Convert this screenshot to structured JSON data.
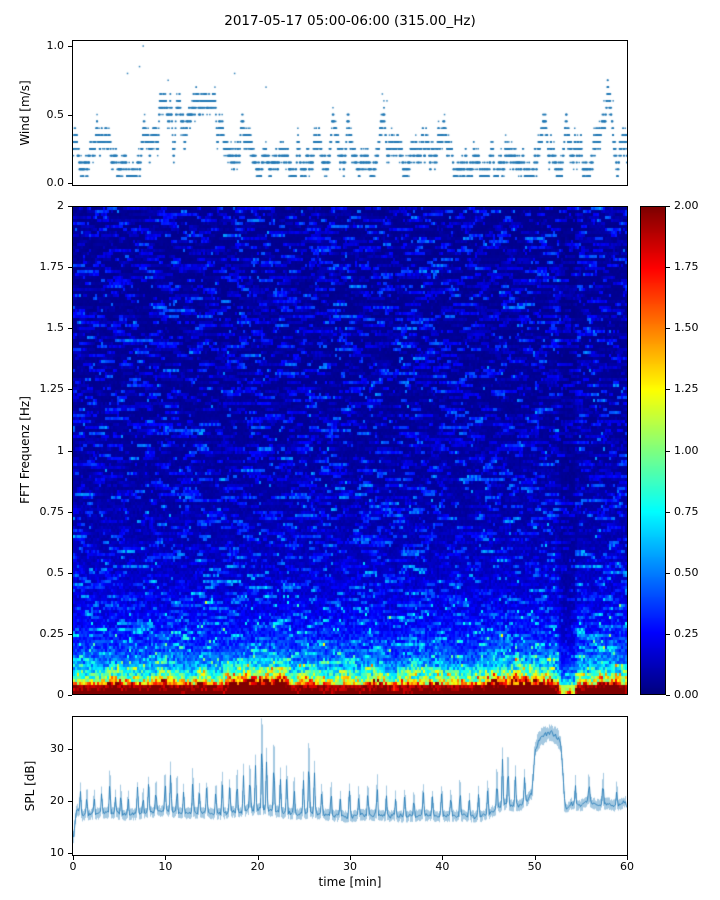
{
  "title": "2017-05-17 05:00-06:00 (315.00_Hz)",
  "colors": {
    "dot_blue": "#1f77b4",
    "line_blue": "#1f77b4",
    "axis": "#000000",
    "background": "#ffffff"
  },
  "axes": {
    "x": {
      "label": "time [min]",
      "min": 0,
      "max": 60,
      "ticks": [
        {
          "v": 0,
          "label": "0"
        },
        {
          "v": 10,
          "label": "10"
        },
        {
          "v": 20,
          "label": "20"
        },
        {
          "v": 30,
          "label": "30"
        },
        {
          "v": 40,
          "label": "40"
        },
        {
          "v": 50,
          "label": "50"
        },
        {
          "v": 60,
          "label": "60"
        }
      ]
    },
    "wind": {
      "ylabel": "Wind [m/s]",
      "min": 0.0,
      "max": 1.0,
      "ticks": [
        {
          "v": 1.0,
          "label": "1.0"
        },
        {
          "v": 0.5,
          "label": "0.5"
        },
        {
          "v": 0.0,
          "label": "0.0"
        }
      ]
    },
    "spectrogram": {
      "ylabel": "FFT Frequenz [Hz]",
      "min": 0,
      "max": 2,
      "ticks": [
        {
          "v": 2,
          "label": "2"
        },
        {
          "v": 1.75,
          "label": "1.75"
        },
        {
          "v": 1.5,
          "label": "1.5"
        },
        {
          "v": 1.25,
          "label": "1.25"
        },
        {
          "v": 1,
          "label": "1"
        },
        {
          "v": 0.75,
          "label": "0.75"
        },
        {
          "v": 0.5,
          "label": "0.5"
        },
        {
          "v": 0.25,
          "label": "0.25"
        },
        {
          "v": 0,
          "label": "0"
        }
      ]
    },
    "colorbar": {
      "min": 0,
      "max": 2,
      "colormap": "jet",
      "ticks": [
        {
          "v": 2.0,
          "label": "2.00"
        },
        {
          "v": 1.75,
          "label": "1.75"
        },
        {
          "v": 1.5,
          "label": "1.50"
        },
        {
          "v": 1.25,
          "label": "1.25"
        },
        {
          "v": 1.0,
          "label": "1.00"
        },
        {
          "v": 0.75,
          "label": "0.75"
        },
        {
          "v": 0.5,
          "label": "0.50"
        },
        {
          "v": 0.25,
          "label": "0.25"
        },
        {
          "v": 0.0,
          "label": "0.00"
        }
      ]
    },
    "spl": {
      "ylabel": "SPL [dB]",
      "ticks": [
        {
          "v": 30,
          "label": "30"
        },
        {
          "v": 20,
          "label": "20"
        },
        {
          "v": 10,
          "label": "10"
        }
      ]
    }
  },
  "chart_data": [
    {
      "type": "scatter",
      "name": "wind",
      "title": "",
      "xlabel": "time [min]",
      "ylabel": "Wind [m/s]",
      "xlim": [
        0,
        60
      ],
      "ylim": [
        0,
        1.0
      ],
      "marker_color": "#1f77b4",
      "quantization": 0.05,
      "dominant_levels": [
        0.1,
        0.15,
        0.2,
        0.25,
        0.3
      ],
      "sparse_levels": [
        0.4,
        0.5,
        0.6
      ],
      "gust_windows": [
        [
          7,
          9.5
        ],
        [
          9.8,
          12
        ],
        [
          13,
          15.5
        ],
        [
          17,
          19
        ],
        [
          32.5,
          34.5
        ],
        [
          56,
          59.5
        ]
      ],
      "rare_points": [
        [
          7.6,
          1.0
        ],
        [
          5.9,
          0.8
        ],
        [
          17.5,
          0.8
        ],
        [
          7.2,
          0.85
        ],
        [
          33.5,
          0.65
        ],
        [
          34,
          0.6
        ],
        [
          57.5,
          0.6
        ],
        [
          58.5,
          0.6
        ],
        [
          10.3,
          0.75
        ],
        [
          20.9,
          0.7
        ]
      ],
      "samples_per_minute": 60,
      "seed": 42
    },
    {
      "type": "heatmap",
      "name": "spectrogram",
      "xlabel": "time [min]",
      "ylabel": "FFT Frequenz [Hz]",
      "xlim": [
        0,
        60
      ],
      "ylim": [
        0,
        2
      ],
      "vmin": 0,
      "vmax": 2,
      "colormap": "jet",
      "background_level": [
        0.03,
        0.41
      ],
      "lowfreq_peak": 1.9,
      "lowfreq_decay": 0.045,
      "midfreq_gain": 0.5,
      "midfreq_decay": 0.3,
      "bottom_band_value": 1.8,
      "events": [
        {
          "t0": 16.5,
          "t1": 23.5,
          "gain": 1.3,
          "fdecay": 0.05
        },
        {
          "t0": 44.5,
          "t1": 52.4,
          "gain": 1.0,
          "fdecay": 0.045
        },
        {
          "t0": 3.5,
          "t1": 6.0,
          "gain": 0.45,
          "fdecay": 0.04
        },
        {
          "t0": 8.5,
          "t1": 11.5,
          "gain": 0.5,
          "fdecay": 0.04
        },
        {
          "t0": 13.0,
          "t1": 15.5,
          "gain": 0.4,
          "fdecay": 0.04
        },
        {
          "t0": 24.5,
          "t1": 26.5,
          "gain": 0.6,
          "fdecay": 0.045
        },
        {
          "t0": 32.0,
          "t1": 34.0,
          "gain": 0.5,
          "fdecay": 0.04
        },
        {
          "t0": 56.5,
          "t1": 59.5,
          "gain": 0.6,
          "fdecay": 0.045
        }
      ],
      "dark_columns": [
        {
          "t0": 52.6,
          "t1": 54.6,
          "factor": 0.55
        },
        {
          "t0": 34.3,
          "t1": 35.2,
          "factor": 0.85
        }
      ],
      "seed": 7
    },
    {
      "type": "line",
      "name": "spl",
      "xlabel": "time [min]",
      "ylabel": "SPL [dB]",
      "xlim": [
        0,
        60
      ],
      "ylim_view": [
        9.4,
        36.4
      ],
      "line_color": "#1f77b4",
      "noise": 1.2,
      "plateau_noise": 1.8,
      "plateau_window": [
        49.9,
        53.2
      ],
      "baseline": [
        [
          0,
          12.5
        ],
        [
          0.4,
          18.5
        ],
        [
          1,
          17.2
        ],
        [
          2,
          17.5
        ],
        [
          4,
          17.8
        ],
        [
          6,
          17.3
        ],
        [
          8,
          17.8
        ],
        [
          10,
          18.2
        ],
        [
          12,
          17.6
        ],
        [
          14,
          17.8
        ],
        [
          16,
          17.5
        ],
        [
          18,
          18.0
        ],
        [
          20,
          18.5
        ],
        [
          22,
          18.0
        ],
        [
          24,
          17.4
        ],
        [
          26,
          17.8
        ],
        [
          28,
          17.2
        ],
        [
          30,
          17.0
        ],
        [
          32,
          17.4
        ],
        [
          34,
          17.2
        ],
        [
          36,
          17.0
        ],
        [
          38,
          17.3
        ],
        [
          40,
          17.0
        ],
        [
          42,
          17.2
        ],
        [
          44,
          17.0
        ],
        [
          45,
          17.5
        ],
        [
          46,
          18.5
        ],
        [
          47,
          19.5
        ],
        [
          48,
          19.0
        ],
        [
          49,
          19.5
        ],
        [
          49.8,
          21.5
        ],
        [
          50.1,
          29.5
        ],
        [
          50.4,
          31.5
        ],
        [
          51,
          32.5
        ],
        [
          51.5,
          33.0
        ],
        [
          52,
          33.0
        ],
        [
          52.5,
          32.5
        ],
        [
          52.9,
          31.0
        ],
        [
          53.1,
          27.0
        ],
        [
          53.4,
          18.5
        ],
        [
          54,
          19.5
        ],
        [
          55,
          19.0
        ],
        [
          56,
          20.0
        ],
        [
          57,
          19.2
        ],
        [
          58,
          19.6
        ],
        [
          59,
          19.0
        ],
        [
          60,
          20.0
        ]
      ],
      "spikes": [
        [
          0.8,
          23
        ],
        [
          1.5,
          22
        ],
        [
          2.3,
          22
        ],
        [
          3.1,
          22.5
        ],
        [
          4,
          25
        ],
        [
          4.6,
          22
        ],
        [
          5.2,
          23
        ],
        [
          6,
          22.5
        ],
        [
          7,
          24
        ],
        [
          7.6,
          22
        ],
        [
          8.2,
          25
        ],
        [
          9,
          23
        ],
        [
          10,
          24
        ],
        [
          10.6,
          27
        ],
        [
          11.3,
          24
        ],
        [
          12,
          23
        ],
        [
          13,
          26
        ],
        [
          13.7,
          23
        ],
        [
          14.5,
          24
        ],
        [
          15.5,
          23
        ],
        [
          16.2,
          25
        ],
        [
          17,
          24
        ],
        [
          17.8,
          25
        ],
        [
          18.5,
          26
        ],
        [
          19.2,
          26
        ],
        [
          19.8,
          28
        ],
        [
          20.5,
          36
        ],
        [
          21,
          29
        ],
        [
          21.8,
          30
        ],
        [
          22.5,
          26
        ],
        [
          23.2,
          27
        ],
        [
          24,
          24
        ],
        [
          25,
          25
        ],
        [
          25.6,
          31
        ],
        [
          26.2,
          27
        ],
        [
          27,
          23
        ],
        [
          28,
          23.5
        ],
        [
          29,
          22
        ],
        [
          30,
          24
        ],
        [
          31,
          22.5
        ],
        [
          32,
          23
        ],
        [
          33,
          25
        ],
        [
          34,
          23
        ],
        [
          35,
          22
        ],
        [
          36,
          23
        ],
        [
          37,
          22
        ],
        [
          38,
          24
        ],
        [
          39,
          22.5
        ],
        [
          40,
          23
        ],
        [
          41,
          23
        ],
        [
          42,
          24
        ],
        [
          43,
          22
        ],
        [
          44,
          23
        ],
        [
          45,
          24
        ],
        [
          46,
          25
        ],
        [
          46.6,
          29
        ],
        [
          47.2,
          27
        ],
        [
          48,
          25
        ],
        [
          49,
          24
        ],
        [
          54.5,
          23
        ],
        [
          56,
          22.5
        ],
        [
          57.5,
          23
        ],
        [
          59,
          22
        ]
      ],
      "seed": 99
    }
  ]
}
